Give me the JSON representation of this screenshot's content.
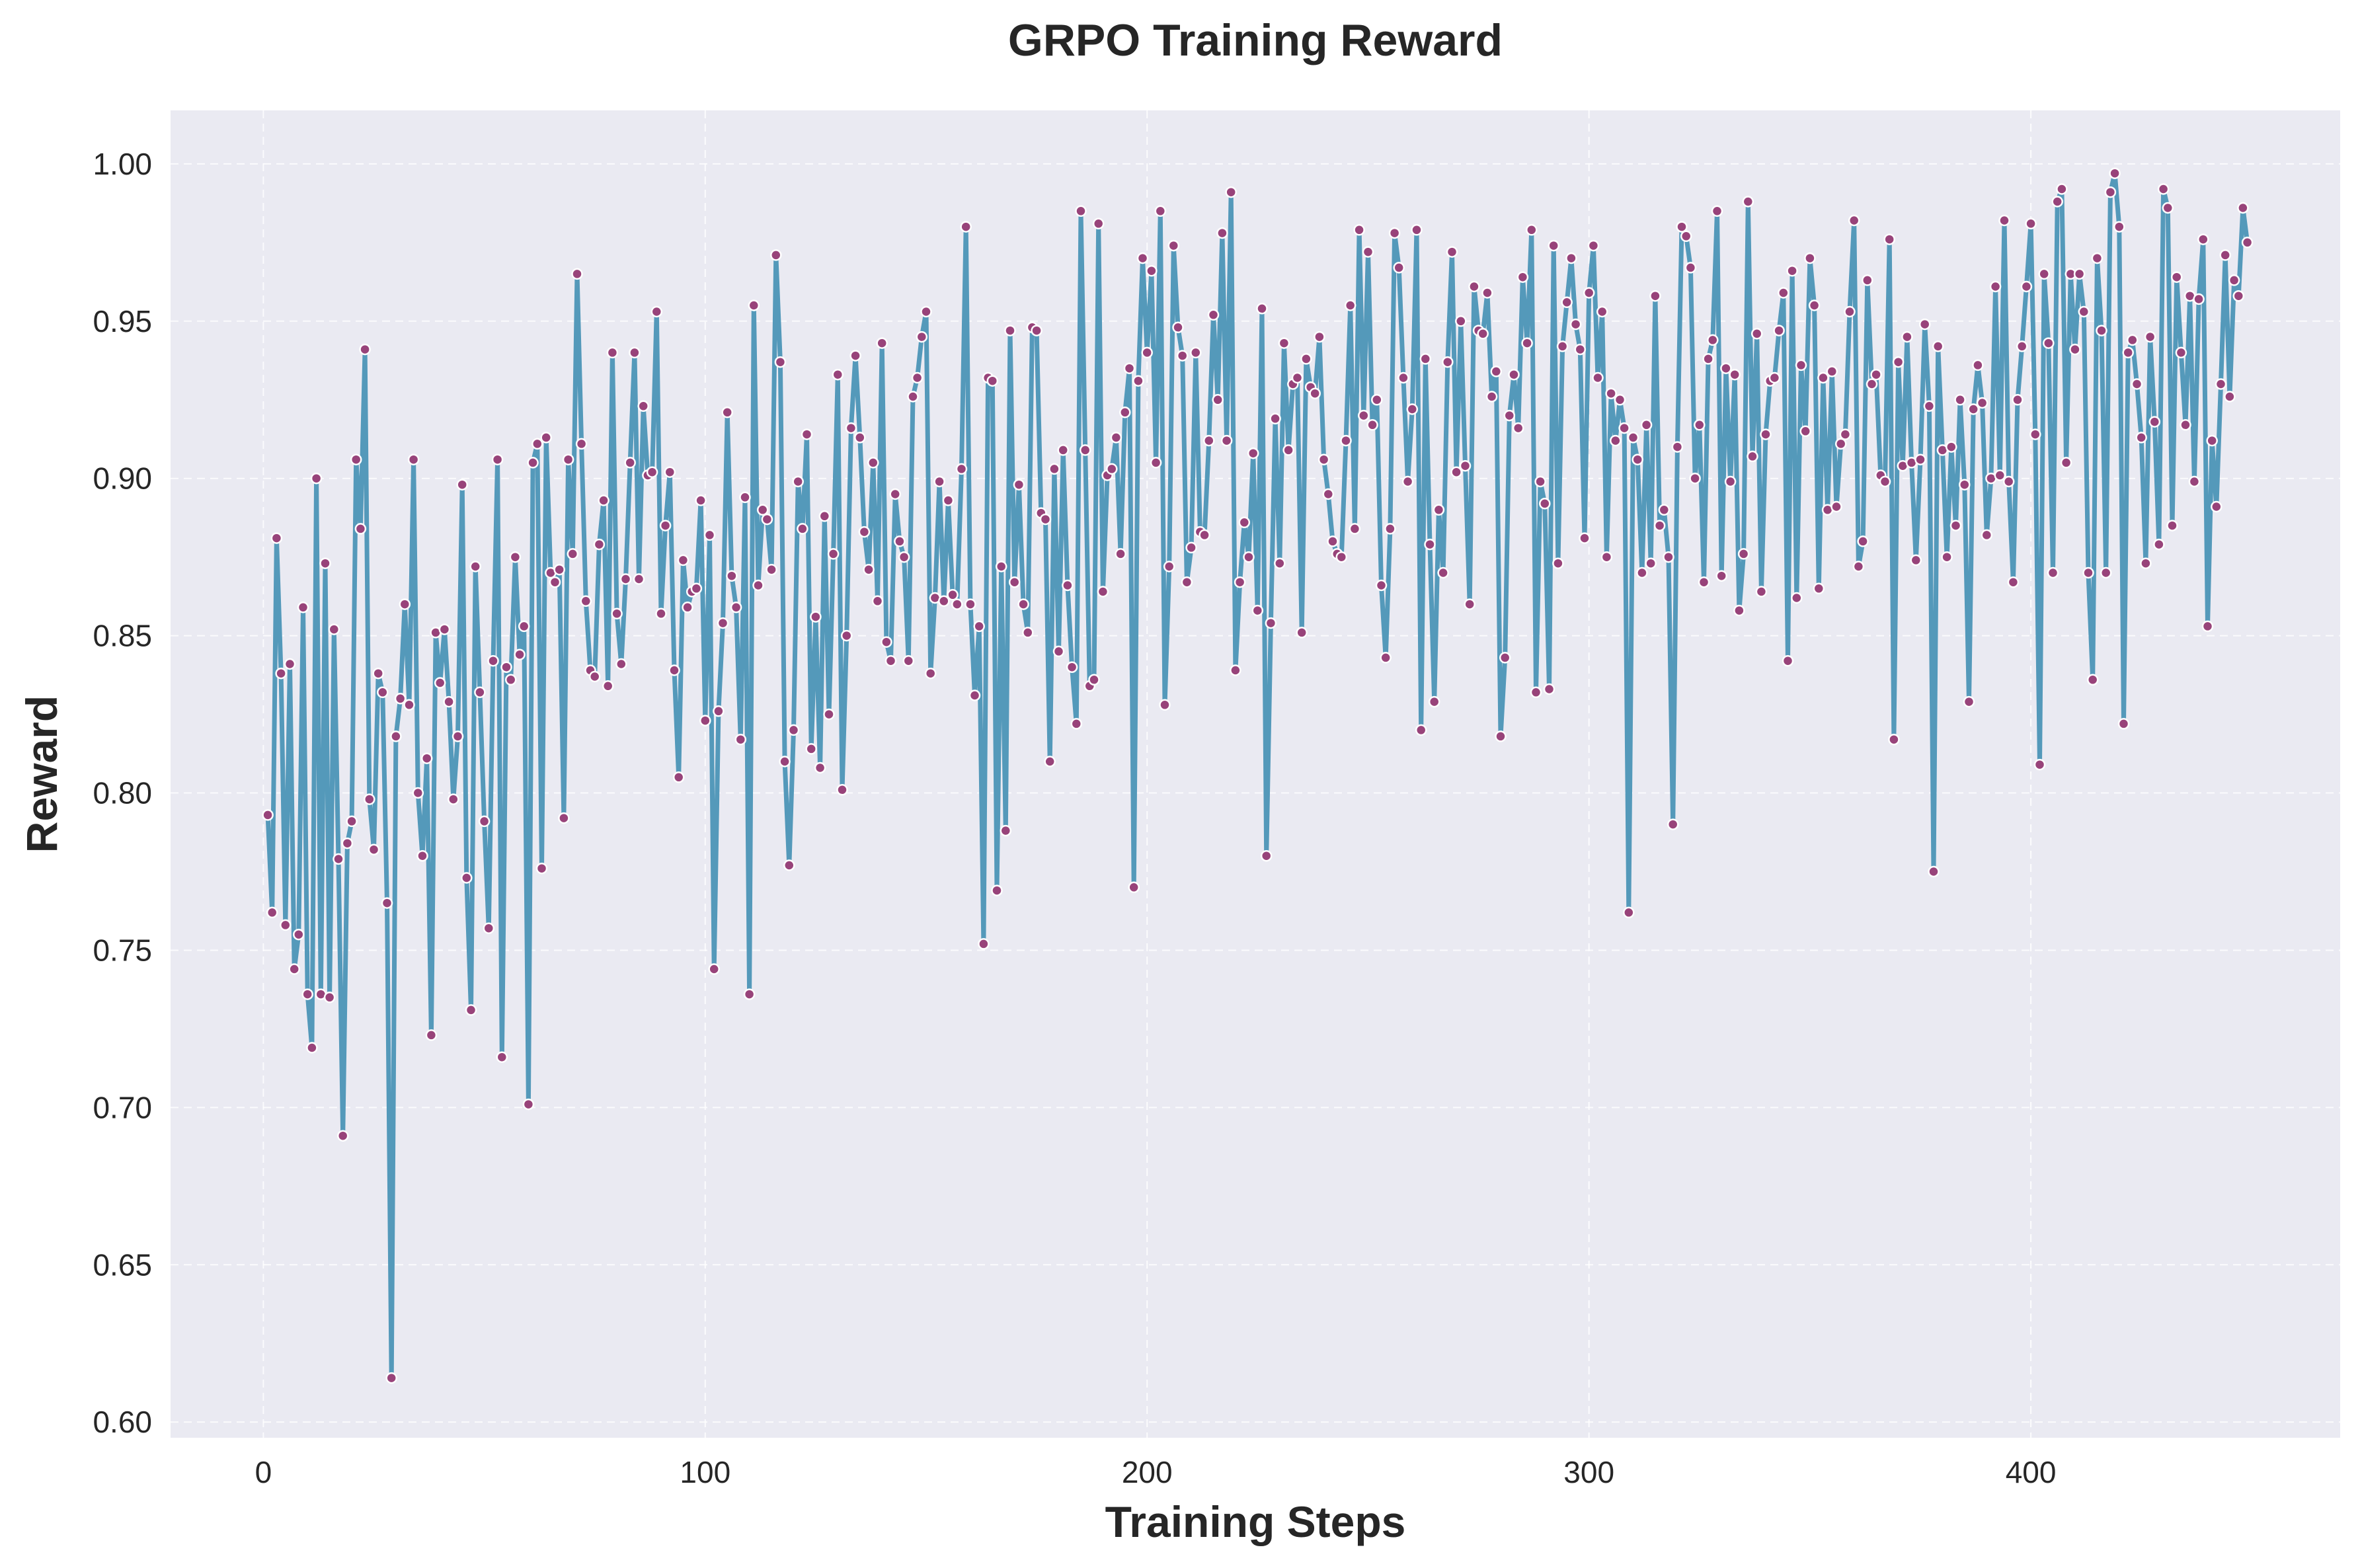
{
  "chart_data": {
    "type": "line",
    "title": "GRPO Training Reward",
    "xlabel": "Training Steps",
    "ylabel": "Reward",
    "xlim": [
      -21,
      470
    ],
    "ylim": [
      0.595,
      1.017
    ],
    "xticks": [
      0,
      100,
      200,
      300,
      400
    ],
    "yticks": [
      0.6,
      0.65,
      0.7,
      0.75,
      0.8,
      0.85,
      0.9,
      0.95,
      1.0
    ],
    "ytick_labels": [
      "0.60",
      "0.65",
      "0.70",
      "0.75",
      "0.80",
      "0.85",
      "0.90",
      "0.95",
      "1.00"
    ],
    "xtick_labels": [
      "0",
      "100",
      "200",
      "300",
      "400"
    ],
    "grid": true,
    "legend": "none",
    "colors": {
      "background": "#EAEAF2",
      "line": "#5499BA",
      "marker": "#98437A",
      "marker_edge": "#ffffff",
      "grid": "#ffffff"
    },
    "series": [
      {
        "x_start": 1,
        "x_step": 1,
        "values": [
          0.793,
          0.762,
          0.881,
          0.838,
          0.758,
          0.841,
          0.744,
          0.755,
          0.859,
          0.736,
          0.719,
          0.9,
          0.736,
          0.873,
          0.735,
          0.852,
          0.779,
          0.691,
          0.784,
          0.791,
          0.906,
          0.884,
          0.941,
          0.798,
          0.782,
          0.838,
          0.832,
          0.765,
          0.614,
          0.818,
          0.83,
          0.86,
          0.828,
          0.906,
          0.8,
          0.78,
          0.811,
          0.723,
          0.851,
          0.835,
          0.852,
          0.829,
          0.798,
          0.818,
          0.898,
          0.773,
          0.731,
          0.872,
          0.832,
          0.791,
          0.757,
          0.842,
          0.906,
          0.716,
          0.84,
          0.836,
          0.875,
          0.844,
          0.853,
          0.701,
          0.905,
          0.911,
          0.776,
          0.913,
          0.87,
          0.867,
          0.871,
          0.792,
          0.906,
          0.876,
          0.965,
          0.911,
          0.861,
          0.839,
          0.837,
          0.879,
          0.893,
          0.834,
          0.94,
          0.857,
          0.841,
          0.868,
          0.905,
          0.94,
          0.868,
          0.923,
          0.901,
          0.902,
          0.953,
          0.857,
          0.885,
          0.902,
          0.839,
          0.805,
          0.874,
          0.859,
          0.864,
          0.865,
          0.893,
          0.823,
          0.882,
          0.744,
          0.826,
          0.854,
          0.921,
          0.869,
          0.859,
          0.817,
          0.894,
          0.736,
          0.955,
          0.866,
          0.89,
          0.887,
          0.871,
          0.971,
          0.937,
          0.81,
          0.777,
          0.82,
          0.899,
          0.884,
          0.914,
          0.814,
          0.856,
          0.808,
          0.888,
          0.825,
          0.876,
          0.933,
          0.801,
          0.85,
          0.916,
          0.939,
          0.913,
          0.883,
          0.871,
          0.905,
          0.861,
          0.943,
          0.848,
          0.842,
          0.895,
          0.88,
          0.875,
          0.842,
          0.926,
          0.932,
          0.945,
          0.953,
          0.838,
          0.862,
          0.899,
          0.861,
          0.893,
          0.863,
          0.86,
          0.903,
          0.98,
          0.86,
          0.831,
          0.853,
          0.752,
          0.932,
          0.931,
          0.769,
          0.872,
          0.788,
          0.947,
          0.867,
          0.898,
          0.86,
          0.851,
          0.948,
          0.947,
          0.889,
          0.887,
          0.81,
          0.903,
          0.845,
          0.909,
          0.866,
          0.84,
          0.822,
          0.985,
          0.909,
          0.834,
          0.836,
          0.981,
          0.864,
          0.901,
          0.903,
          0.913,
          0.876,
          0.921,
          0.935,
          0.77,
          0.931,
          0.97,
          0.94,
          0.966,
          0.905,
          0.985,
          0.828,
          0.872,
          0.974,
          0.948,
          0.939,
          0.867,
          0.878,
          0.94,
          0.883,
          0.882,
          0.912,
          0.952,
          0.925,
          0.978,
          0.912,
          0.991,
          0.839,
          0.867,
          0.886,
          0.875,
          0.908,
          0.858,
          0.954,
          0.78,
          0.854,
          0.919,
          0.873,
          0.943,
          0.909,
          0.93,
          0.932,
          0.851,
          0.938,
          0.929,
          0.927,
          0.945,
          0.906,
          0.895,
          0.88,
          0.876,
          0.875,
          0.912,
          0.955,
          0.884,
          0.979,
          0.92,
          0.972,
          0.917,
          0.925,
          0.866,
          0.843,
          0.884,
          0.978,
          0.967,
          0.932,
          0.899,
          0.922,
          0.979,
          0.82,
          0.938,
          0.879,
          0.829,
          0.89,
          0.87,
          0.937,
          0.972,
          0.902,
          0.95,
          0.904,
          0.86,
          0.961,
          0.947,
          0.946,
          0.959,
          0.926,
          0.934,
          0.818,
          0.843,
          0.92,
          0.933,
          0.916,
          0.964,
          0.943,
          0.979,
          0.832,
          0.899,
          0.892,
          0.833,
          0.974,
          0.873,
          0.942,
          0.956,
          0.97,
          0.949,
          0.941,
          0.881,
          0.959,
          0.974,
          0.932,
          0.953,
          0.875,
          0.927,
          0.912,
          0.925,
          0.916,
          0.762,
          0.913,
          0.906,
          0.87,
          0.917,
          0.873,
          0.958,
          0.885,
          0.89,
          0.875,
          0.79,
          0.91,
          0.98,
          0.977,
          0.967,
          0.9,
          0.917,
          0.867,
          0.938,
          0.944,
          0.985,
          0.869,
          0.935,
          0.899,
          0.933,
          0.858,
          0.876,
          0.988,
          0.907,
          0.946,
          0.864,
          0.914,
          0.931,
          0.932,
          0.947,
          0.959,
          0.842,
          0.966,
          0.862,
          0.936,
          0.915,
          0.97,
          0.955,
          0.865,
          0.932,
          0.89,
          0.934,
          0.891,
          0.911,
          0.914,
          0.953,
          0.982,
          0.872,
          0.88,
          0.963,
          0.93,
          0.933,
          0.901,
          0.899,
          0.976,
          0.817,
          0.937,
          0.904,
          0.945,
          0.905,
          0.874,
          0.906,
          0.949,
          0.923,
          0.775,
          0.942,
          0.909,
          0.875,
          0.91,
          0.885,
          0.925,
          0.898,
          0.829,
          0.922,
          0.936,
          0.924,
          0.882,
          0.9,
          0.961,
          0.901,
          0.982,
          0.899,
          0.867,
          0.925,
          0.942,
          0.961,
          0.981,
          0.914,
          0.809,
          0.965,
          0.943,
          0.87,
          0.988,
          0.992,
          0.905,
          0.965,
          0.941,
          0.965,
          0.953,
          0.87,
          0.836,
          0.97,
          0.947,
          0.87,
          0.991,
          0.997,
          0.98,
          0.822,
          0.94,
          0.944,
          0.93,
          0.913,
          0.873,
          0.945,
          0.918,
          0.879,
          0.992,
          0.986,
          0.885,
          0.964,
          0.94,
          0.917,
          0.958,
          0.899,
          0.957,
          0.976,
          0.853,
          0.912,
          0.891,
          0.93,
          0.971,
          0.926,
          0.963,
          0.958,
          0.986,
          0.975
        ]
      }
    ]
  }
}
